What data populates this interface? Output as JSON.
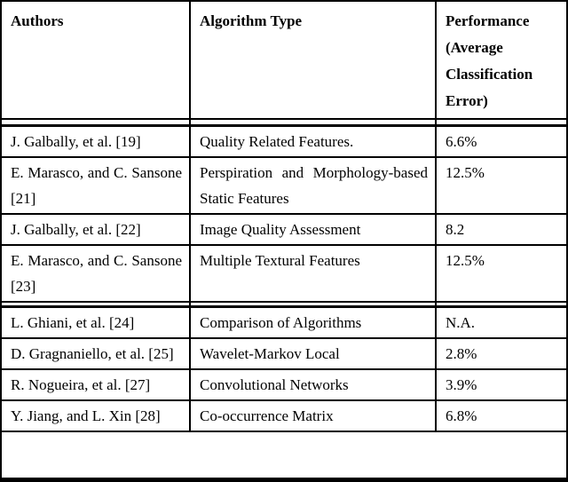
{
  "page": {
    "background_color": "#ffffff",
    "rule_color": "#000000",
    "text_color": "#000000"
  },
  "table": {
    "headers": {
      "authors": "Authors",
      "algorithm": "Algorithm Type",
      "performance": "Performance (Average Classification Error)"
    },
    "rows": [
      {
        "authors": "J. Galbally, et al. [19]",
        "algorithm": "Quality Related Features.",
        "performance": "6.6%"
      },
      {
        "authors": "E. Marasco, and C. Sansone [21]",
        "algorithm": "Perspiration and Morphology-based Static Features",
        "performance": "12.5%"
      },
      {
        "authors": "J. Galbally, et al. [22]",
        "algorithm": "Image Quality Assessment",
        "performance": "8.2"
      },
      {
        "authors": "E. Marasco, and C. Sansone [23]",
        "algorithm": "Multiple Textural Features",
        "performance": "12.5%"
      },
      {
        "authors": "L. Ghiani, et al. [24]",
        "algorithm": "Comparison of Algorithms",
        "performance": "N.A."
      },
      {
        "authors": "D. Gragnaniello, et al. [25]",
        "algorithm": "Wavelet-Markov Local",
        "performance": "2.8%"
      },
      {
        "authors": "R. Nogueira, et al. [27]",
        "algorithm": "Convolutional Networks",
        "performance": "3.9%"
      },
      {
        "authors": "Y. Jiang, and L. Xin [28]",
        "algorithm": "Co-occurrence Matrix",
        "performance": "6.8%"
      }
    ]
  }
}
